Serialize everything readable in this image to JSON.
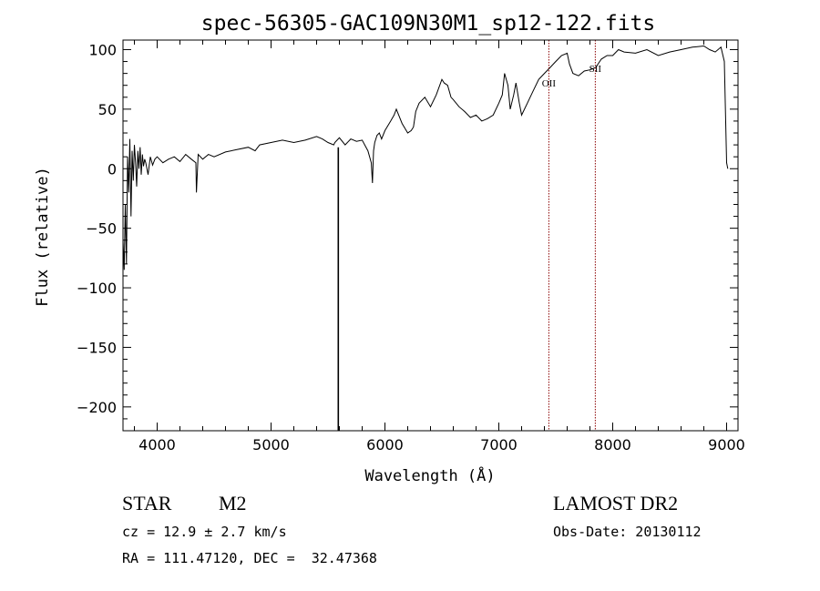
{
  "chart_data": {
    "type": "line",
    "title": "spec-56305-GAC109N30M1_sp12-122.fits",
    "xlabel": "Wavelength (Å)",
    "ylabel": "Flux (relative)",
    "xlim": [
      3700,
      9100
    ],
    "ylim": [
      -220,
      108
    ],
    "xticks": [
      4000,
      5000,
      6000,
      7000,
      8000,
      9000
    ],
    "yticks": [
      -200,
      -150,
      -100,
      -50,
      0,
      50,
      100
    ],
    "ytick_labels": [
      "−200",
      "−150",
      "−100",
      "−50",
      "0",
      "50",
      "100"
    ],
    "series": [
      {
        "color": "#000000",
        "x": [
          3700,
          3710,
          3720,
          3730,
          3740,
          3750,
          3760,
          3770,
          3780,
          3790,
          3800,
          3810,
          3820,
          3830,
          3840,
          3850,
          3860,
          3870,
          3880,
          3890,
          3900,
          3920,
          3940,
          3960,
          3980,
          4000,
          4050,
          4100,
          4150,
          4200,
          4250,
          4300,
          4340,
          4345,
          4360,
          4400,
          4450,
          4500,
          4600,
          4700,
          4800,
          4860,
          4900,
          5000,
          5100,
          5200,
          5300,
          5400,
          5450,
          5500,
          5550,
          5560,
          5580,
          5600,
          5650,
          5700,
          5750,
          5800,
          5850,
          5880,
          5890,
          5895,
          5900,
          5910,
          5930,
          5950,
          5970,
          6000,
          6050,
          6080,
          6100,
          6150,
          6200,
          6230,
          6250,
          6270,
          6300,
          6350,
          6400,
          6450,
          6500,
          6520,
          6550,
          6580,
          6600,
          6650,
          6700,
          6750,
          6800,
          6850,
          6900,
          6950,
          7000,
          7030,
          7050,
          7080,
          7100,
          7130,
          7150,
          7180,
          7200,
          7250,
          7300,
          7350,
          7400,
          7450,
          7500,
          7550,
          7600,
          7620,
          7650,
          7700,
          7750,
          7800,
          7850,
          7900,
          7950,
          8000,
          8050,
          8100,
          8200,
          8300,
          8400,
          8500,
          8600,
          8700,
          8800,
          8850,
          8900,
          8950,
          8980,
          9000,
          9010
        ],
        "y": [
          -60,
          -85,
          -30,
          -80,
          10,
          -20,
          25,
          -40,
          15,
          -10,
          20,
          5,
          -15,
          15,
          0,
          18,
          -5,
          12,
          2,
          8,
          5,
          -5,
          10,
          3,
          8,
          10,
          5,
          8,
          10,
          6,
          12,
          8,
          5,
          -20,
          12,
          8,
          12,
          10,
          14,
          16,
          18,
          15,
          20,
          22,
          24,
          22,
          24,
          27,
          25,
          22,
          20,
          22,
          24,
          26,
          20,
          25,
          23,
          24,
          15,
          5,
          -12,
          2,
          15,
          22,
          28,
          30,
          25,
          32,
          40,
          45,
          50,
          38,
          30,
          32,
          35,
          48,
          55,
          60,
          52,
          62,
          75,
          72,
          70,
          60,
          58,
          52,
          48,
          43,
          45,
          40,
          42,
          45,
          55,
          62,
          80,
          70,
          50,
          62,
          72,
          55,
          45,
          55,
          65,
          75,
          80,
          85,
          90,
          95,
          97,
          88,
          80,
          78,
          82,
          83,
          85,
          92,
          95,
          95,
          100,
          98,
          97,
          100,
          95,
          98,
          100,
          102,
          103,
          100,
          98,
          102,
          90,
          5,
          0
        ]
      },
      {
        "color": "#000000",
        "x": [
          5590,
          5590
        ],
        "y": [
          -220,
          18
        ]
      }
    ],
    "annotations": [
      {
        "label": "OII",
        "x": 7439,
        "color": "#8b0000"
      },
      {
        "label": "SII",
        "x": 7847,
        "color": "#8b0000"
      }
    ]
  },
  "info": {
    "object_class": "STAR",
    "subclass": "M2",
    "survey": "LAMOST DR2",
    "cz": "cz = 12.9 ± 2.7 km/s",
    "obs_date": "Obs-Date: 20130112",
    "coords": "RA = 111.47120, DEC =  32.47368"
  }
}
